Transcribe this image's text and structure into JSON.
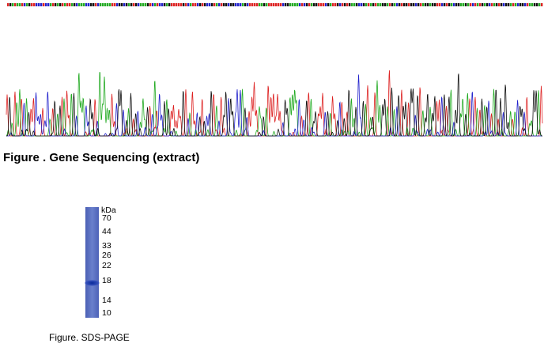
{
  "figures": [
    {
      "caption": "Figure . Gene Sequencing (extract)"
    },
    {
      "caption": "Figure. SDS-PAGE",
      "unit": "kDa",
      "markers": [
        70,
        44,
        33,
        26,
        22,
        18,
        14,
        10
      ]
    }
  ]
}
